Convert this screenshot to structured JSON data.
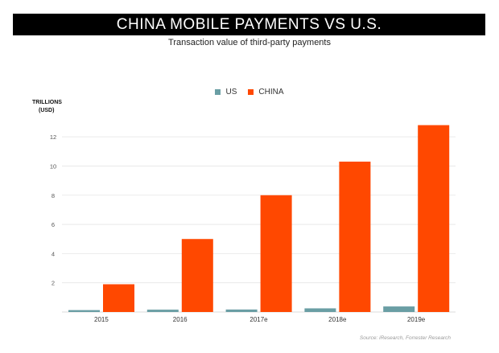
{
  "header": {
    "title": "CHINA MOBILE PAYMENTS VS U.S.",
    "subtitle": "Transaction value of third-party payments"
  },
  "source": "Source: iResearch, Forrester Research",
  "colors": {
    "us": "#6a9ea4",
    "china": "#ff4800",
    "title_bg": "#000000"
  },
  "chart_data": {
    "type": "bar",
    "title": "CHINA MOBILE PAYMENTS VS U.S.",
    "subtitle": "Transaction value of third-party payments",
    "ylabel_lines": [
      "TRILLIONS",
      "(USD)"
    ],
    "xlabel": "",
    "categories": [
      "2015",
      "2016",
      "2017e",
      "2018e",
      "2019e"
    ],
    "series": [
      {
        "name": "US",
        "color": "#6a9ea4",
        "values": [
          0.13,
          0.16,
          0.17,
          0.25,
          0.38
        ]
      },
      {
        "name": "CHINA",
        "color": "#ff4800",
        "values": [
          1.9,
          5.0,
          8.0,
          10.3,
          12.8
        ]
      }
    ],
    "yticks": [
      2,
      4,
      6,
      8,
      10,
      12
    ],
    "ylim": [
      0,
      13
    ],
    "grid": true,
    "legend_position": "top-center"
  }
}
